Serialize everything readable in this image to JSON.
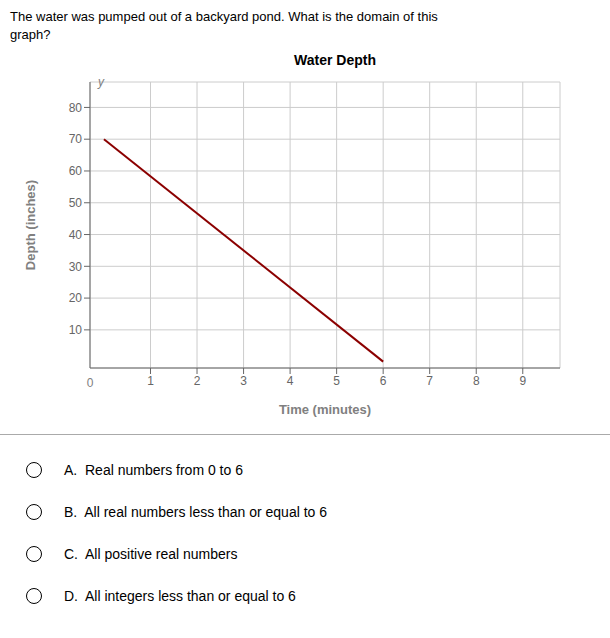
{
  "chart_data": {
    "type": "line",
    "title": "Water Depth",
    "subtitle": [
      "The water was pumped out of a backyard pond. What is the domain of this",
      "graph?"
    ],
    "x_label": "Time (minutes)",
    "y_label": "Depth (inches)",
    "x": [
      0,
      6
    ],
    "values": [
      70,
      0
    ],
    "color": "#8B0000",
    "xlim": [
      -0.3,
      9.8
    ],
    "ylim": [
      -2,
      88
    ],
    "xticks": [
      1,
      2,
      3,
      4,
      5,
      6,
      7,
      8,
      9
    ],
    "yticks": [
      10,
      20,
      30,
      40,
      50,
      60,
      70,
      80
    ],
    "grid": true,
    "annotations": [
      "0",
      "y",
      "A.  Real numbers from 0 to 6",
      "B.  All real numbers less than or equal to 6",
      "C.  All positive real numbers",
      "D.  All integers less than or equal to 6"
    ]
  }
}
